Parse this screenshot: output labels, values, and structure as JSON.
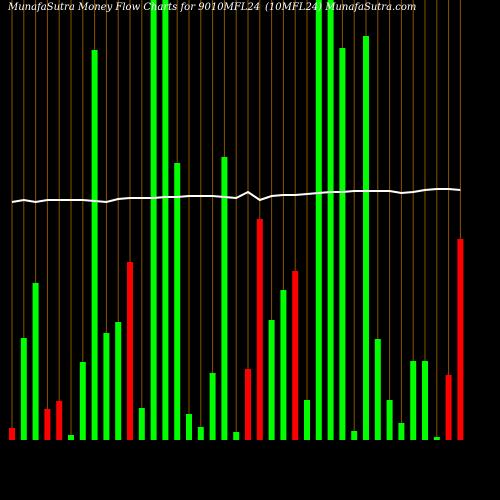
{
  "chart_data": {
    "type": "bar",
    "title": "MunafaSutra  Money Flow  Charts for 9010MFL24",
    "subtitle": "(10MFL24) MunafaSutra.com",
    "categories": [
      null,
      null,
      null,
      null,
      null,
      null,
      null,
      null,
      null,
      null,
      null,
      null,
      null,
      null,
      null,
      null,
      null,
      null,
      null,
      null,
      null,
      null,
      null,
      null,
      null,
      null,
      null,
      null,
      null,
      null,
      null,
      null,
      null,
      null,
      null,
      null,
      null,
      null,
      null
    ],
    "series": [
      {
        "values": [
          12,
          102,
          157,
          31,
          39,
          5,
          78,
          390,
          107,
          118,
          178,
          32,
          460,
          460,
          277,
          26,
          13,
          67,
          283,
          8,
          71,
          221,
          120,
          150,
          169,
          40,
          460,
          460,
          392,
          9,
          404,
          101,
          40,
          17,
          79,
          79,
          3,
          65,
          201
        ],
        "colors": [
          "#ff0000",
          "#00ff00",
          "#00ff00",
          "#ff0000",
          "#ff0000",
          "#00ff00",
          "#00ff00",
          "#00ff00",
          "#00ff00",
          "#00ff00",
          "#ff0000",
          "#00ff00",
          "#00ff00",
          "#00ff00",
          "#00ff00",
          "#00ff00",
          "#00ff00",
          "#00ff00",
          "#00ff00",
          "#00ff00",
          "#ff0000",
          "#ff0000",
          "#00ff00",
          "#00ff00",
          "#ff0000",
          "#00ff00",
          "#00ff00",
          "#00ff00",
          "#00ff00",
          "#00ff00",
          "#00ff00",
          "#00ff00",
          "#00ff00",
          "#00ff00",
          "#00ff00",
          "#00ff00",
          "#00ff00",
          "#ff0000",
          "#ff0000"
        ]
      },
      {
        "type": "line",
        "color": "#ffffff",
        "values": [
          238,
          240,
          238,
          240,
          240,
          240,
          240,
          239,
          238,
          241,
          242,
          242,
          242,
          243,
          243,
          244,
          244,
          244,
          243,
          242,
          248,
          240,
          244,
          245,
          245,
          246,
          247,
          248,
          248,
          249,
          249,
          249,
          249,
          247,
          248,
          250,
          251,
          251,
          250
        ]
      }
    ],
    "ylim": [
      0,
      440
    ]
  }
}
